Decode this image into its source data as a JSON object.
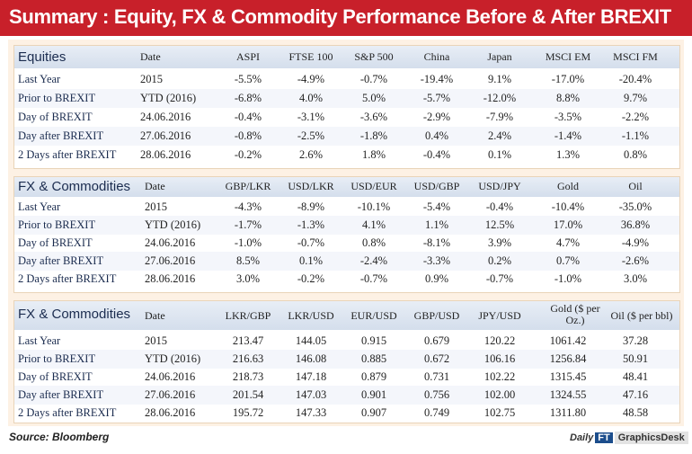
{
  "title": "Summary : Equity, FX & Commodity Performance Before & After BREXIT",
  "tables": [
    {
      "group": "Equities",
      "date_header": "Date",
      "columns": [
        "ASPI",
        "FTSE 100",
        "S&P 500",
        "China",
        "Japan",
        "MSCI EM",
        "MSCI FM"
      ],
      "rows": [
        {
          "label": "Last Year",
          "date": "2015",
          "values": [
            "-5.5%",
            "-4.9%",
            "-0.7%",
            "-19.4%",
            "9.1%",
            "-17.0%",
            "-20.4%"
          ]
        },
        {
          "label": "Prior to BREXIT",
          "date": "YTD (2016)",
          "values": [
            "-6.8%",
            "4.0%",
            "5.0%",
            "-5.7%",
            "-12.0%",
            "8.8%",
            "9.7%"
          ]
        },
        {
          "label": "Day of BREXIT",
          "date": "24.06.2016",
          "values": [
            "-0.4%",
            "-3.1%",
            "-3.6%",
            "-2.9%",
            "-7.9%",
            "-3.5%",
            "-2.2%"
          ]
        },
        {
          "label": "Day after BREXIT",
          "date": "27.06.2016",
          "values": [
            "-0.8%",
            "-2.5%",
            "-1.8%",
            "0.4%",
            "2.4%",
            "-1.4%",
            "-1.1%"
          ]
        },
        {
          "label": "2 Days after BREXIT",
          "date": "28.06.2016",
          "values": [
            "-0.2%",
            "2.6%",
            "1.8%",
            "-0.4%",
            "0.1%",
            "1.3%",
            "0.8%"
          ]
        }
      ]
    },
    {
      "group": "FX & Commodities",
      "date_header": "Date",
      "columns": [
        "GBP/LKR",
        "USD/LKR",
        "USD/EUR",
        "USD/GBP",
        "USD/JPY",
        "Gold",
        "Oil"
      ],
      "rows": [
        {
          "label": "Last Year",
          "date": "2015",
          "values": [
            "-4.3%",
            "-8.9%",
            "-10.1%",
            "-5.4%",
            "-0.4%",
            "-10.4%",
            "-35.0%"
          ]
        },
        {
          "label": "Prior to BREXIT",
          "date": "YTD (2016)",
          "values": [
            "-1.7%",
            "-1.3%",
            "4.1%",
            "1.1%",
            "12.5%",
            "17.0%",
            "36.8%"
          ]
        },
        {
          "label": "Day of BREXIT",
          "date": "24.06.2016",
          "values": [
            "-1.0%",
            "-0.7%",
            "0.8%",
            "-8.1%",
            "3.9%",
            "4.7%",
            "-4.9%"
          ]
        },
        {
          "label": "Day after BREXIT",
          "date": "27.06.2016",
          "values": [
            "8.5%",
            "0.1%",
            "-2.4%",
            "-3.3%",
            "0.2%",
            "0.7%",
            "-2.6%"
          ]
        },
        {
          "label": "2 Days after BREXIT",
          "date": "28.06.2016",
          "values": [
            "3.0%",
            "-0.2%",
            "-0.7%",
            "0.9%",
            "-0.7%",
            "-1.0%",
            "3.0%"
          ]
        }
      ]
    },
    {
      "group": "FX & Commodities",
      "date_header": "Date",
      "columns": [
        "LKR/GBP",
        "LKR/USD",
        "EUR/USD",
        "GBP/USD",
        "JPY/USD",
        "Gold ($ per Oz.)",
        "Oil ($ per bbl)"
      ],
      "rows": [
        {
          "label": "Last Year",
          "date": "2015",
          "values": [
            "213.47",
            "144.05",
            "0.915",
            "0.679",
            "120.22",
            "1061.42",
            "37.28"
          ]
        },
        {
          "label": "Prior to BREXIT",
          "date": "YTD (2016)",
          "values": [
            "216.63",
            "146.08",
            "0.885",
            "0.672",
            "106.16",
            "1256.84",
            "50.91"
          ]
        },
        {
          "label": "Day of BREXIT",
          "date": "24.06.2016",
          "values": [
            "218.73",
            "147.18",
            "0.879",
            "0.731",
            "102.22",
            "1315.45",
            "48.41"
          ]
        },
        {
          "label": "Day after BREXIT",
          "date": "27.06.2016",
          "values": [
            "201.54",
            "147.03",
            "0.901",
            "0.756",
            "102.00",
            "1324.55",
            "47.16"
          ]
        },
        {
          "label": "2 Days after BREXIT",
          "date": "28.06.2016",
          "values": [
            "195.72",
            "147.33",
            "0.907",
            "0.749",
            "102.75",
            "1311.80",
            "48.58"
          ]
        }
      ]
    }
  ],
  "source": "Source: Bloomberg",
  "logo": {
    "daily": "Daily",
    "ft": "FT",
    "desk": "GraphicsDesk"
  },
  "colors": {
    "title_bg": "#c8202a",
    "header_bg": "#dbe3ef",
    "panel_bg": "#fdf1e4",
    "logo_blue": "#1c4d8c"
  }
}
